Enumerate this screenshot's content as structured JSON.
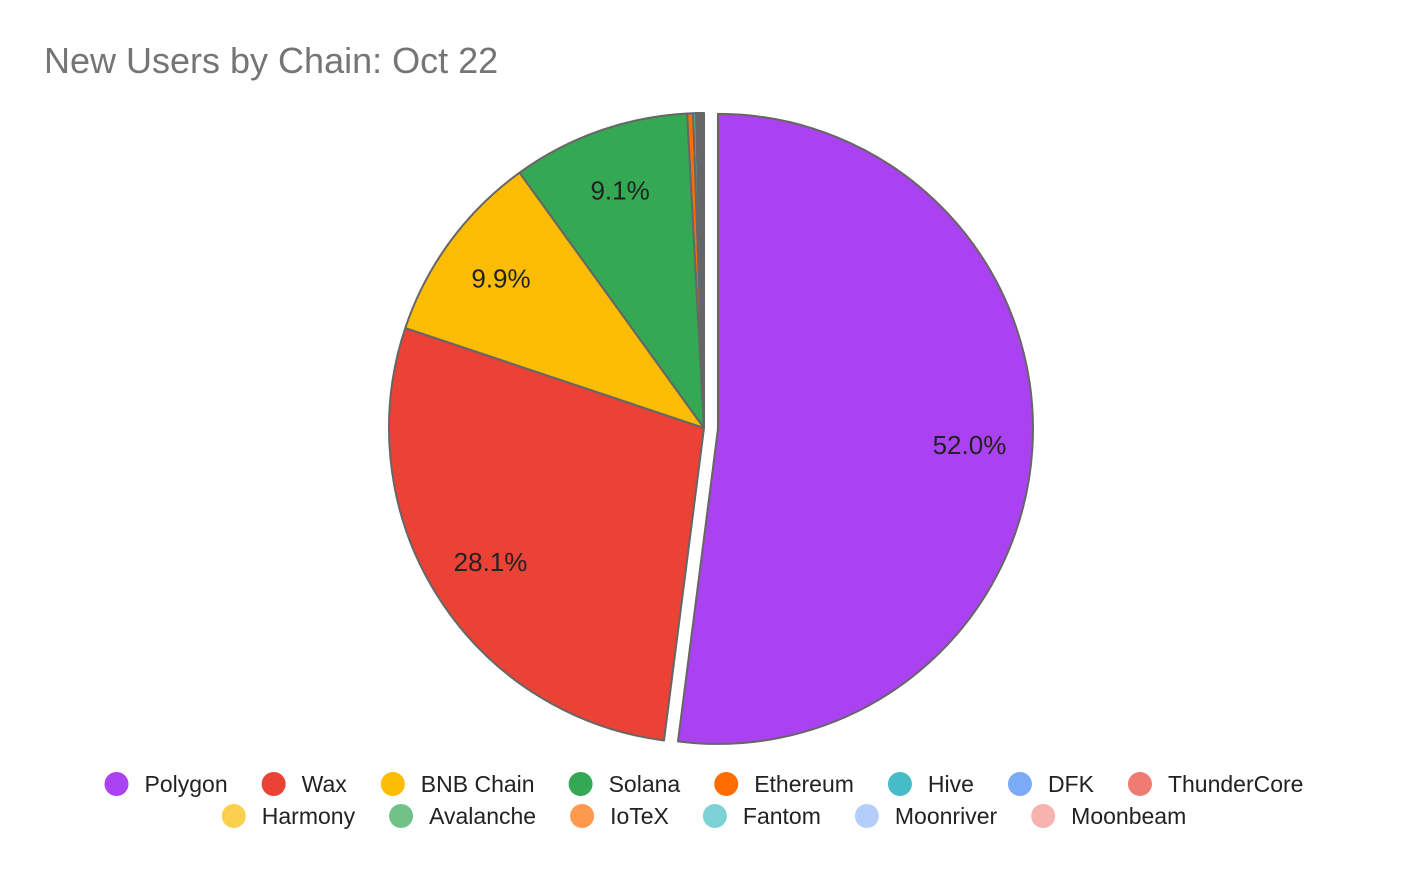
{
  "chart_data": {
    "type": "pie",
    "title": "New Users by Chain: Oct 22",
    "legend_position": "bottom",
    "slices": [
      {
        "name": "Polygon",
        "value": 52.0,
        "label": "52.0%",
        "color": "#aa42f2",
        "exploded": true
      },
      {
        "name": "Wax",
        "value": 28.1,
        "label": "28.1%",
        "color": "#ea4335"
      },
      {
        "name": "BNB Chain",
        "value": 9.9,
        "label": "9.9%",
        "color": "#fbbc04"
      },
      {
        "name": "Solana",
        "value": 9.1,
        "label": "9.1%",
        "color": "#34a853"
      },
      {
        "name": "Ethereum",
        "value": 0.3,
        "label": "",
        "color": "#ff6d01"
      },
      {
        "name": "Hive",
        "value": 0.15,
        "label": "",
        "color": "#46bdc6"
      },
      {
        "name": "DFK",
        "value": 0.1,
        "label": "",
        "color": "#7baaf7"
      },
      {
        "name": "ThunderCore",
        "value": 0.08,
        "label": "",
        "color": "#f07b72"
      },
      {
        "name": "Harmony",
        "value": 0.06,
        "label": "",
        "color": "#fcd04f"
      },
      {
        "name": "Avalanche",
        "value": 0.05,
        "label": "",
        "color": "#71c287"
      },
      {
        "name": "IoTeX",
        "value": 0.04,
        "label": "",
        "color": "#ff994d"
      },
      {
        "name": "Fantom",
        "value": 0.03,
        "label": "",
        "color": "#7ed1d7"
      },
      {
        "name": "Moonriver",
        "value": 0.02,
        "label": "",
        "color": "#b3cefb"
      },
      {
        "name": "Moonbeam",
        "value": 0.02,
        "label": "",
        "color": "#f7b4ae"
      }
    ]
  }
}
